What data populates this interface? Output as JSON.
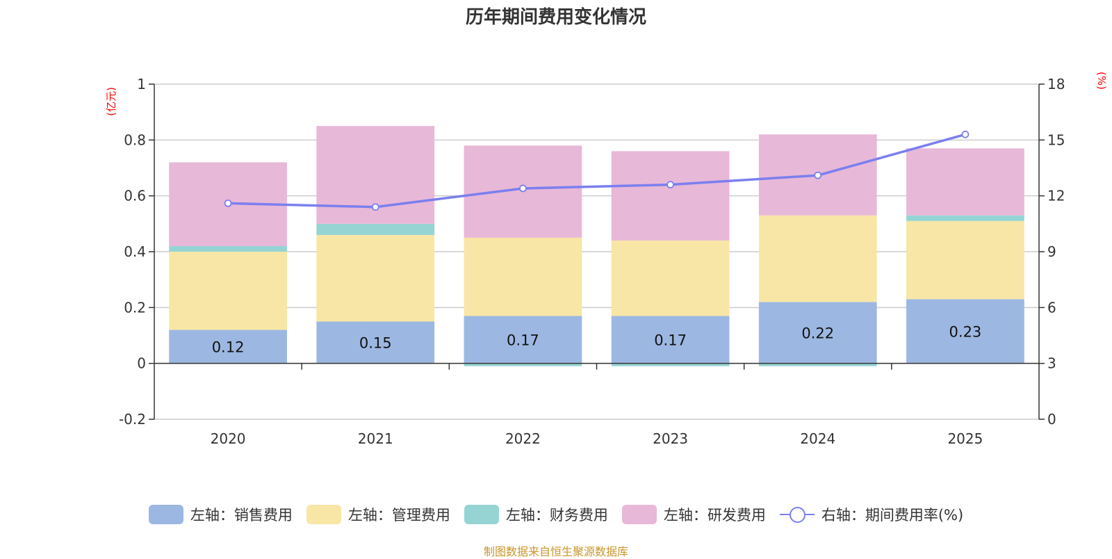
{
  "chart_data": {
    "type": "bar",
    "title": "历年期间费用变化情况",
    "categories": [
      "2020",
      "2021",
      "2022",
      "2023",
      "2024",
      "2025"
    ],
    "y_left": {
      "unit": "(亿元)",
      "ticks": [
        "-0.2",
        "0",
        "0.2",
        "0.4",
        "0.6",
        "0.8",
        "1"
      ],
      "range": [
        -0.2,
        1
      ]
    },
    "y_right": {
      "unit": "(%)",
      "ticks": [
        "0",
        "3",
        "6",
        "9",
        "12",
        "15",
        "18"
      ],
      "range": [
        0,
        18
      ]
    },
    "series": [
      {
        "name": "左轴：销售费用",
        "kind": "bar",
        "axis": "left",
        "color": "#9cb8e2",
        "values": [
          0.12,
          0.15,
          0.17,
          0.17,
          0.22,
          0.23
        ],
        "labels": [
          "0.12",
          "0.15",
          "0.17",
          "0.17",
          "0.22",
          "0.23"
        ]
      },
      {
        "name": "左轴：管理费用",
        "kind": "bar",
        "axis": "left",
        "color": "#f8e6a6",
        "values": [
          0.28,
          0.31,
          0.28,
          0.27,
          0.31,
          0.28
        ]
      },
      {
        "name": "左轴：财务费用",
        "kind": "bar",
        "axis": "left",
        "color": "#96d4d4",
        "values": [
          0.02,
          0.04,
          -0.01,
          -0.01,
          -0.01,
          0.02
        ]
      },
      {
        "name": "左轴：研发费用",
        "kind": "bar",
        "axis": "left",
        "color": "#e8b8d8",
        "values": [
          0.3,
          0.35,
          0.33,
          0.32,
          0.29,
          0.24
        ]
      },
      {
        "name": "右轴：期间费用率(%)",
        "kind": "line",
        "axis": "right",
        "color": "#7b7fef",
        "values": [
          11.6,
          11.4,
          12.4,
          12.6,
          13.1,
          15.3
        ]
      }
    ]
  },
  "source": "制图数据来自恒生聚源数据库"
}
